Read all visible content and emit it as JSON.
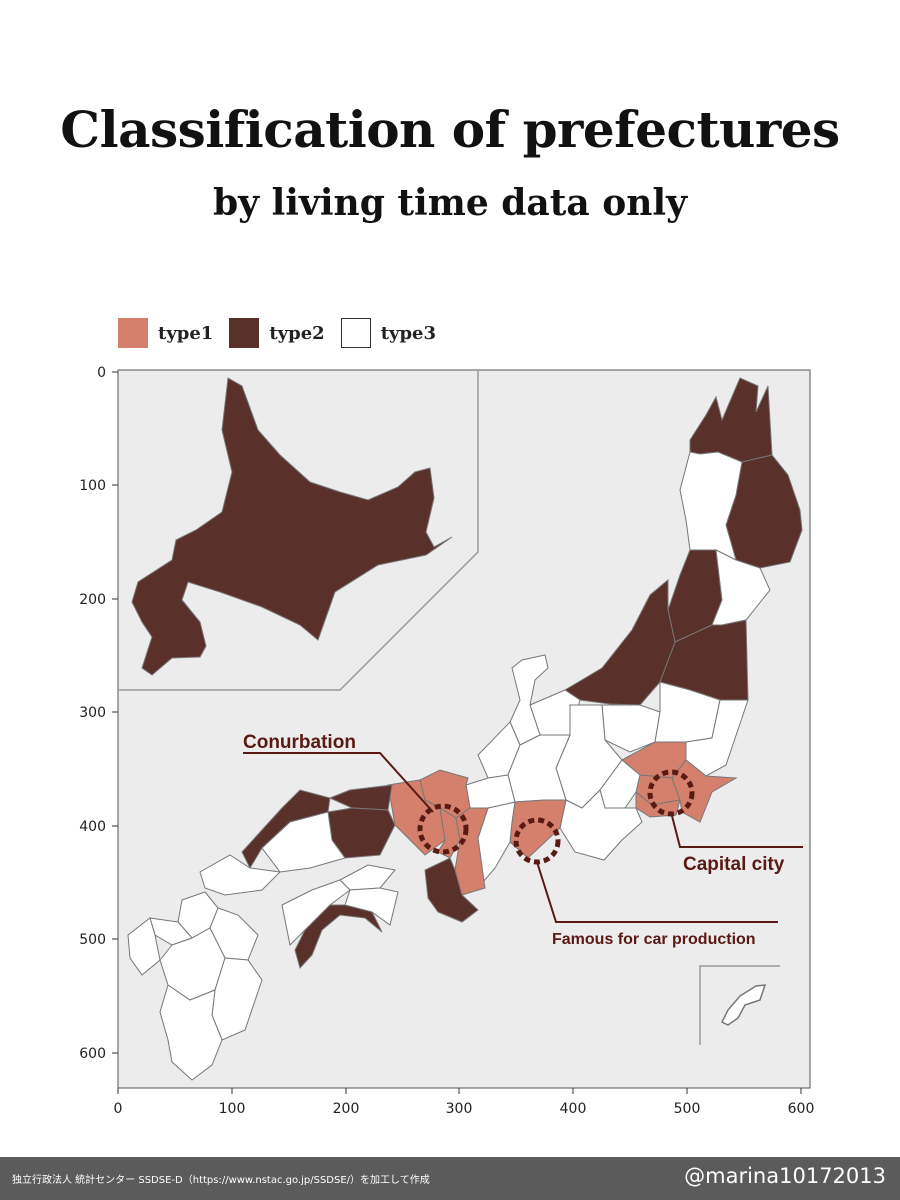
{
  "header": {
    "title": "Classification of prefectures",
    "subtitle": "by living time data only"
  },
  "legend": [
    {
      "label": "type1",
      "color": "#d4806c"
    },
    {
      "label": "type2",
      "color": "#5a302b"
    },
    {
      "label": "type3",
      "color": "#ffffff"
    }
  ],
  "axes": {
    "x_ticks": [
      "0",
      "100",
      "200",
      "300",
      "400",
      "500",
      "600"
    ],
    "y_ticks": [
      "0",
      "100",
      "200",
      "300",
      "400",
      "500",
      "600"
    ]
  },
  "annotations": {
    "conurbation": "Conurbation",
    "capital": "Capital city",
    "car": "Famous for car production"
  },
  "colors": {
    "type1": "#d4806c",
    "type2": "#5a302b",
    "type3": "#ffffff",
    "plot_bg": "#ececec",
    "annotation": "#5a1a14"
  },
  "footer": {
    "credit": "独立行政法人 統計センター SSDSE-D（https://www.nstac.go.jp/SSDSE/）を加工して作成",
    "handle": "@marina10172013"
  }
}
